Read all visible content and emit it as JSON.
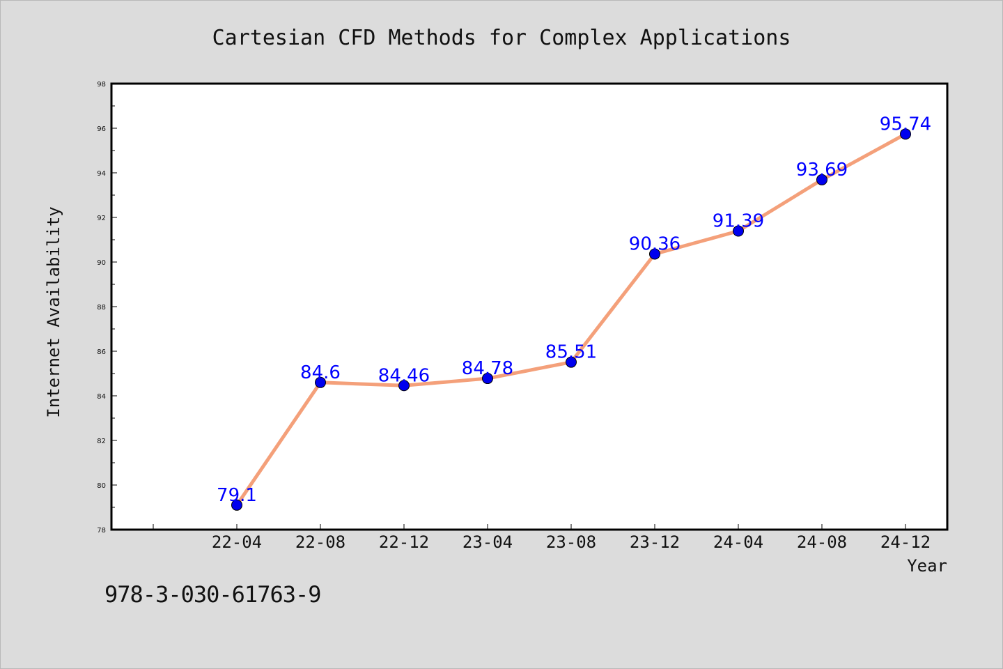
{
  "chart_data": {
    "type": "line",
    "title": "Cartesian CFD Methods for Complex Applications",
    "xlabel": "Year",
    "ylabel": "Internet Availability",
    "categories": [
      "22-04",
      "22-08",
      "22-12",
      "23-04",
      "23-08",
      "23-12",
      "24-04",
      "24-08",
      "24-12"
    ],
    "series": [
      {
        "values": [
          79.1,
          84.6,
          84.46,
          84.78,
          85.51,
          90.36,
          91.39,
          93.69,
          95.74
        ]
      }
    ],
    "data_labels": [
      "79.1",
      "84.6",
      "84.46",
      "84.78",
      "85.51",
      "90.36",
      "91.39",
      "93.69",
      "95.74"
    ],
    "ylim": [
      78,
      98
    ],
    "yticks": [
      78,
      80,
      82,
      84,
      86,
      88,
      90,
      92,
      94,
      96,
      98
    ],
    "grid": false,
    "legend": "none",
    "colors": {
      "line": "#f4a07a",
      "marker": "#0000ee",
      "label": "#0000ff",
      "background": "#dcdcdc",
      "plot_background": "#ffffff"
    }
  },
  "footer": {
    "isbn": "978-3-030-61763-9"
  }
}
